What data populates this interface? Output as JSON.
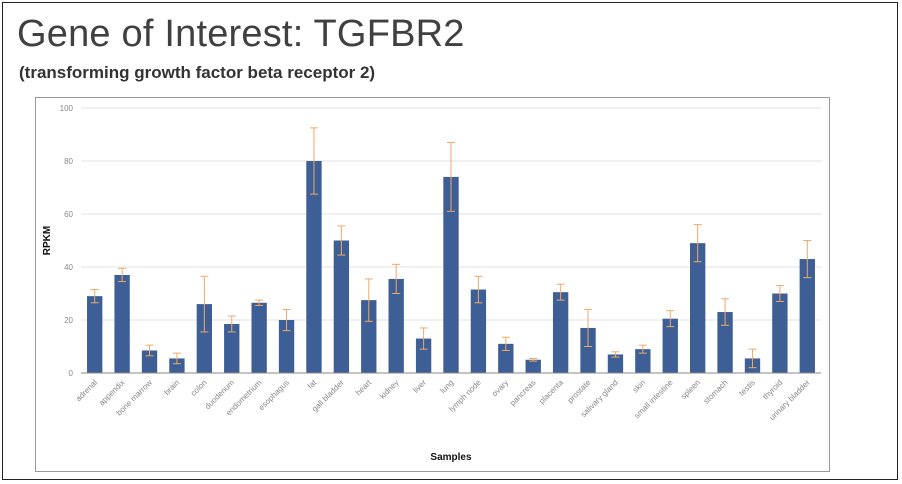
{
  "header": {
    "title": "Gene of Interest: TGFBR2",
    "subtitle": "(transforming growth factor beta receptor 2)"
  },
  "colors": {
    "bar": "#3d5f96",
    "error_bar": "#f0a868",
    "grid": "#e2e2e2",
    "tick_text": "#888888"
  },
  "chart_data": {
    "type": "bar",
    "title": "",
    "xlabel": "Samples",
    "ylabel": "RPKM",
    "ylim": [
      0,
      100
    ],
    "yticks": [
      0,
      20,
      40,
      60,
      80,
      100
    ],
    "grid": true,
    "legend": "none",
    "categories": [
      "adrenal",
      "appendix",
      "bone marrow",
      "brain",
      "colon",
      "duodenum",
      "endometrium",
      "esophagus",
      "fat",
      "gall bladder",
      "heart",
      "kidney",
      "liver",
      "lung",
      "lymph node",
      "ovary",
      "pancreas",
      "placenta",
      "prostate",
      "salivary gland",
      "skin",
      "small intestine",
      "spleen",
      "stomach",
      "testis",
      "thyroid",
      "urinary bladder"
    ],
    "series": [
      {
        "values": [
          29,
          37,
          8.5,
          5.5,
          26,
          18.5,
          26.5,
          20,
          80,
          50,
          27.5,
          35.5,
          13,
          74,
          31.5,
          11,
          5,
          30.5,
          17,
          7,
          9,
          20.5,
          49,
          23,
          5.5,
          30,
          43
        ],
        "error": [
          2.5,
          2.5,
          2,
          2,
          10.5,
          3,
          1,
          4,
          12.5,
          5.5,
          8,
          5.5,
          4,
          13,
          5,
          2.5,
          0.5,
          3,
          7,
          1,
          1.5,
          3,
          7,
          5,
          3.5,
          3,
          7
        ]
      }
    ]
  }
}
